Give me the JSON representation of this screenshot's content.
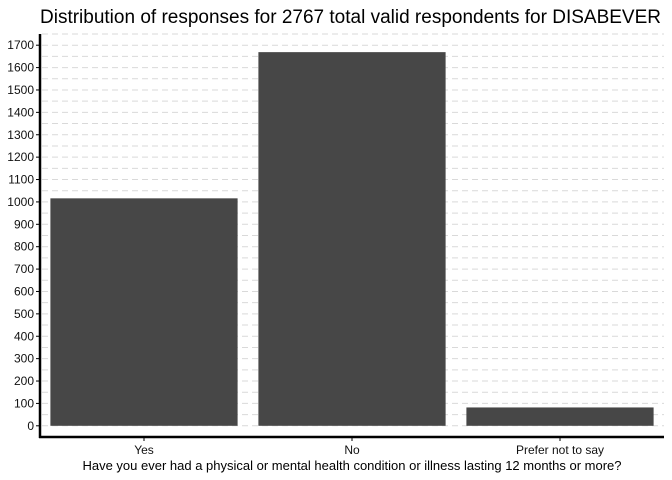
{
  "chart_data": {
    "type": "bar",
    "title": "Distribution of responses for 2767 total valid respondents for DISABEVER",
    "xlabel": "Have you ever had a physical or mental health condition or illness lasting 12 months or more?",
    "ylabel": "",
    "categories": [
      "Yes",
      "No",
      "Prefer not to say"
    ],
    "values": [
      1016,
      1669,
      82
    ],
    "yticks": [
      0,
      100,
      200,
      300,
      400,
      500,
      600,
      700,
      800,
      900,
      1000,
      1100,
      1200,
      1300,
      1400,
      1500,
      1600,
      1700
    ],
    "ylim": [
      -50,
      1750
    ],
    "grid": true,
    "legend": "none",
    "bar_color": "#474747",
    "grid_color": "#d9d9d9",
    "axis_color": "#000000"
  }
}
